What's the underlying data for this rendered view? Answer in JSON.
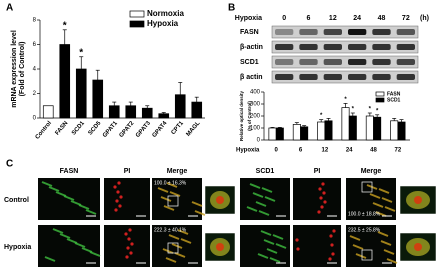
{
  "panel_labels": [
    "A",
    "B",
    "C"
  ],
  "chart_data": [
    {
      "type": "bar",
      "ylabel": [
        "mRNA expression level",
        "(Fold of Control)"
      ],
      "categories": [
        "Control",
        "FASN",
        "SCD1",
        "SCD5",
        "GPAT1",
        "GPAT2",
        "GPAT3",
        "GPAT4",
        "CPT1",
        "MAGL"
      ],
      "series": [
        {
          "name": "Normoxia",
          "color": "#ffffff",
          "values": [
            1,
            null,
            null,
            null,
            null,
            null,
            null,
            null,
            null,
            null
          ],
          "errors": [
            null,
            null,
            null,
            null,
            null,
            null,
            null,
            null,
            null,
            null
          ]
        },
        {
          "name": "Hypoxia",
          "color": "#000000",
          "values": [
            null,
            6,
            4,
            3.1,
            1,
            1,
            0.8,
            0.35,
            1.9,
            1.3
          ],
          "errors": [
            null,
            1.2,
            1,
            0.8,
            0.3,
            0.3,
            0.2,
            0.1,
            1,
            0.4
          ]
        }
      ],
      "annotations": [
        {
          "text": "*",
          "x": "FASN",
          "series": "Hypoxia"
        },
        {
          "text": "*",
          "x": "SCD1",
          "series": "Hypoxia"
        }
      ],
      "ylim": [
        0,
        8
      ],
      "yticks": [
        0,
        2,
        4,
        6,
        8
      ],
      "legend": "upper right"
    },
    {
      "type": "bar",
      "ylabel": [
        "Relative optical density",
        "(% of Control)"
      ],
      "xlabel": "Hypoxia",
      "categories": [
        "0",
        "6",
        "12",
        "24",
        "48",
        "72"
      ],
      "series": [
        {
          "name": "FASN",
          "color": "#ffffff",
          "values": [
            100,
            130,
            150,
            270,
            200,
            160
          ],
          "errors": [
            5,
            15,
            20,
            35,
            25,
            20
          ]
        },
        {
          "name": "SCD1",
          "color": "#000000",
          "values": [
            100,
            110,
            160,
            200,
            190,
            150
          ],
          "errors": [
            5,
            10,
            20,
            25,
            20,
            20
          ]
        }
      ],
      "annotations": [
        {
          "text": "*",
          "x": "12",
          "series": "FASN"
        },
        {
          "text": "*",
          "x": "24",
          "series": "FASN"
        },
        {
          "text": "*",
          "x": "48",
          "series": "FASN"
        },
        {
          "text": "*",
          "x": "24",
          "series": "SCD1"
        },
        {
          "text": "*",
          "x": "48",
          "series": "SCD1"
        }
      ],
      "ylim": [
        0,
        400
      ],
      "yticks": [
        0,
        100,
        200,
        300,
        400
      ],
      "legend": "upper right"
    }
  ],
  "blot": {
    "header": "Hypoxia",
    "lanes": [
      "0",
      "6",
      "12",
      "24",
      "48",
      "72"
    ],
    "unit": "(h)",
    "rows": [
      "FASN",
      "β-actin",
      "SCD1",
      "β actin"
    ]
  },
  "micrographs": {
    "columns": [
      "FASN",
      "PI",
      "Merge",
      "SCD1",
      "PI",
      "Merge"
    ],
    "rows": [
      "Control",
      "Hypoxia"
    ],
    "overlays": [
      [
        "100.0 ± 16.3%",
        "100.0 ± 18.8%"
      ],
      [
        "222.3 ± 40.1%",
        "232.5 ± 25.8%"
      ]
    ]
  }
}
